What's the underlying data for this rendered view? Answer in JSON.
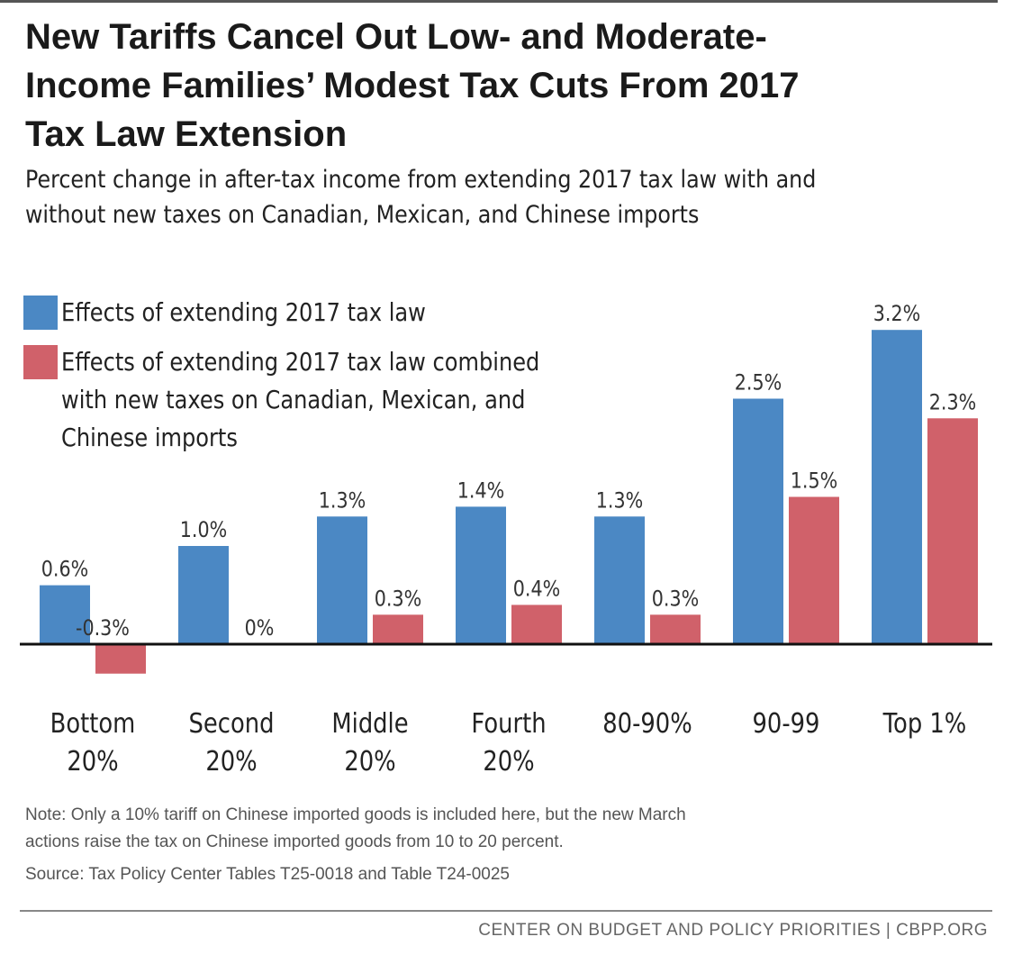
{
  "title_lines": [
    "New Tariffs Cancel Out Low- and Moderate-",
    "Income Families’ Modest Tax Cuts From 2017",
    "Tax Law Extension"
  ],
  "subtitle_lines": [
    "Percent change in after-tax income from extending 2017 tax law with and",
    "without new taxes on Canadian, Mexican, and Chinese imports"
  ],
  "legend": [
    {
      "lines": [
        "Effects of extending 2017 tax law"
      ],
      "color": "#4b88c4"
    },
    {
      "lines": [
        "Effects of extending 2017 tax law combined",
        "with new taxes on Canadian, Mexican, and",
        "Chinese imports"
      ],
      "color": "#d0616a"
    }
  ],
  "chart_data": {
    "type": "bar",
    "categories": [
      [
        "Bottom",
        "20%"
      ],
      [
        "Second",
        "20%"
      ],
      [
        "Middle",
        "20%"
      ],
      [
        "Fourth",
        "20%"
      ],
      [
        "80-90%"
      ],
      [
        "90-99"
      ],
      [
        "Top 1%"
      ]
    ],
    "series": [
      {
        "name": "Effects of extending 2017 tax law",
        "color": "#4b88c4",
        "values": [
          0.6,
          1.0,
          1.3,
          1.4,
          1.3,
          2.5,
          3.2
        ],
        "labels": [
          "0.6%",
          "1.0%",
          "1.3%",
          "1.4%",
          "1.3%",
          "2.5%",
          "3.2%"
        ]
      },
      {
        "name": "Effects of extending 2017 tax law combined with new taxes on Canadian, Mexican, and Chinese imports",
        "color": "#d0616a",
        "values": [
          -0.3,
          0,
          0.3,
          0.4,
          0.3,
          1.5,
          2.3
        ],
        "labels": [
          "-0.3%",
          "0%",
          "0.3%",
          "0.4%",
          "0.3%",
          "1.5%",
          "2.3%"
        ]
      }
    ],
    "ylim": [
      -0.3,
      3.2
    ],
    "grid": false,
    "legend_position": "top-left"
  },
  "note_lines": [
    "Note: Only a 10% tariff on Chinese imported goods is included here, but the new March",
    "actions raise the tax on Chinese imported goods from 10 to 20 percent."
  ],
  "source": "Source: Tax Policy Center Tables T25-0018 and Table T24-0025",
  "footer": "CENTER ON BUDGET AND POLICY PRIORITIES | CBPP.ORG"
}
